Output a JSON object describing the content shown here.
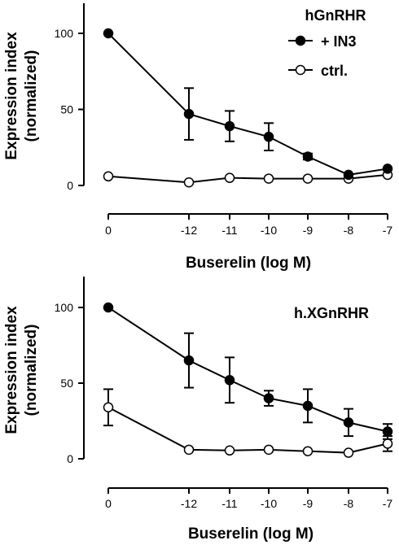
{
  "chart_data": [
    {
      "type": "line",
      "title": "hGnRHR",
      "xlabel": "Buserelin (log M)",
      "ylabel": "Expression index (normalized)",
      "ylabel_lines": [
        "Expression index",
        "(normalized)"
      ],
      "categories": [
        "0",
        "-12",
        "-11",
        "-10",
        "-9",
        "-8",
        "-7"
      ],
      "yticks": [
        "0",
        "50",
        "100"
      ],
      "ylim": [
        0,
        120
      ],
      "legend_position": "top-right",
      "series": [
        {
          "name": "+ IN3",
          "marker": "filled-circle",
          "values": [
            100,
            47,
            39,
            32,
            19,
            7,
            11
          ],
          "errors": [
            0,
            17,
            10,
            9,
            2,
            0,
            0
          ]
        },
        {
          "name": "ctrl.",
          "marker": "open-circle",
          "values": [
            6,
            2,
            5,
            4.5,
            4.5,
            4.5,
            7
          ],
          "errors": [
            0,
            0,
            0,
            0,
            0,
            0,
            0
          ]
        }
      ]
    },
    {
      "type": "line",
      "title": "h.XGnRHR",
      "xlabel": "Buserelin (log M)",
      "ylabel": "Expression index (normalized)",
      "ylabel_lines": [
        "Expression index",
        "(normalized)"
      ],
      "categories": [
        "0",
        "-12",
        "-11",
        "-10",
        "-9",
        "-8",
        "-7"
      ],
      "yticks": [
        "0",
        "50",
        "100"
      ],
      "ylim": [
        0,
        120
      ],
      "series": [
        {
          "name": "",
          "marker": "filled-circle",
          "values": [
            100,
            65,
            52,
            40,
            35,
            24,
            18
          ],
          "errors": [
            0,
            18,
            15,
            5,
            11,
            9,
            5
          ]
        },
        {
          "name": "",
          "marker": "open-circle",
          "values": [
            34,
            6,
            5.5,
            6,
            5,
            4,
            10
          ],
          "errors": [
            12,
            0,
            0,
            0,
            0,
            0,
            5
          ]
        }
      ]
    }
  ]
}
